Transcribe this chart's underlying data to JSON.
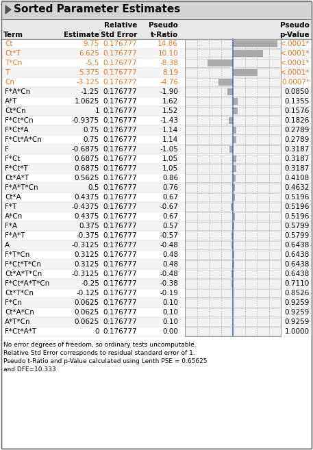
{
  "title": "Sorted Parameter Estimates",
  "headers": [
    "Term",
    "Estimate",
    "Relative\nStd Error",
    "Pseudo\nt-Ratio",
    "Pseudo\np-Value"
  ],
  "rows": [
    {
      "term": "Ct",
      "estimate": 9.75,
      "std_error": 0.176777,
      "t_ratio": 14.86,
      "p_value": "<.0001*",
      "p_highlight": true
    },
    {
      "term": "Ct*T",
      "estimate": 6.625,
      "std_error": 0.176777,
      "t_ratio": 10.1,
      "p_value": "<.0001*",
      "p_highlight": true
    },
    {
      "term": "T*Cn",
      "estimate": -5.5,
      "std_error": 0.176777,
      "t_ratio": -8.38,
      "p_value": "<.0001*",
      "p_highlight": true
    },
    {
      "term": "T",
      "estimate": 5.375,
      "std_error": 0.176777,
      "t_ratio": 8.19,
      "p_value": "<.0001*",
      "p_highlight": true
    },
    {
      "term": "Cn",
      "estimate": -3.125,
      "std_error": 0.176777,
      "t_ratio": -4.76,
      "p_value": "0.0007*",
      "p_highlight": true
    },
    {
      "term": "F*A*Cn",
      "estimate": -1.25,
      "std_error": 0.176777,
      "t_ratio": -1.9,
      "p_value": "0.0850",
      "p_highlight": false
    },
    {
      "term": "A*T",
      "estimate": 1.0625,
      "std_error": 0.176777,
      "t_ratio": 1.62,
      "p_value": "0.1355",
      "p_highlight": false
    },
    {
      "term": "Ct*Cn",
      "estimate": 1,
      "std_error": 0.176777,
      "t_ratio": 1.52,
      "p_value": "0.1576",
      "p_highlight": false
    },
    {
      "term": "F*Ct*Cn",
      "estimate": -0.9375,
      "std_error": 0.176777,
      "t_ratio": -1.43,
      "p_value": "0.1826",
      "p_highlight": false
    },
    {
      "term": "F*Ct*A",
      "estimate": 0.75,
      "std_error": 0.176777,
      "t_ratio": 1.14,
      "p_value": "0.2789",
      "p_highlight": false
    },
    {
      "term": "F*Ct*A*Cn",
      "estimate": 0.75,
      "std_error": 0.176777,
      "t_ratio": 1.14,
      "p_value": "0.2789",
      "p_highlight": false
    },
    {
      "term": "F",
      "estimate": -0.6875,
      "std_error": 0.176777,
      "t_ratio": -1.05,
      "p_value": "0.3187",
      "p_highlight": false
    },
    {
      "term": "F*Ct",
      "estimate": 0.6875,
      "std_error": 0.176777,
      "t_ratio": 1.05,
      "p_value": "0.3187",
      "p_highlight": false
    },
    {
      "term": "F*Ct*T",
      "estimate": 0.6875,
      "std_error": 0.176777,
      "t_ratio": 1.05,
      "p_value": "0.3187",
      "p_highlight": false
    },
    {
      "term": "Ct*A*T",
      "estimate": 0.5625,
      "std_error": 0.176777,
      "t_ratio": 0.86,
      "p_value": "0.4108",
      "p_highlight": false
    },
    {
      "term": "F*A*T*Cn",
      "estimate": 0.5,
      "std_error": 0.176777,
      "t_ratio": 0.76,
      "p_value": "0.4632",
      "p_highlight": false
    },
    {
      "term": "Ct*A",
      "estimate": 0.4375,
      "std_error": 0.176777,
      "t_ratio": 0.67,
      "p_value": "0.5196",
      "p_highlight": false
    },
    {
      "term": "F*T",
      "estimate": -0.4375,
      "std_error": 0.176777,
      "t_ratio": -0.67,
      "p_value": "0.5196",
      "p_highlight": false
    },
    {
      "term": "A*Cn",
      "estimate": 0.4375,
      "std_error": 0.176777,
      "t_ratio": 0.67,
      "p_value": "0.5196",
      "p_highlight": false
    },
    {
      "term": "F*A",
      "estimate": 0.375,
      "std_error": 0.176777,
      "t_ratio": 0.57,
      "p_value": "0.5799",
      "p_highlight": false
    },
    {
      "term": "F*A*T",
      "estimate": -0.375,
      "std_error": 0.176777,
      "t_ratio": -0.57,
      "p_value": "0.5799",
      "p_highlight": false
    },
    {
      "term": "A",
      "estimate": -0.3125,
      "std_error": 0.176777,
      "t_ratio": -0.48,
      "p_value": "0.6438",
      "p_highlight": false
    },
    {
      "term": "F*T*Cn",
      "estimate": 0.3125,
      "std_error": 0.176777,
      "t_ratio": 0.48,
      "p_value": "0.6438",
      "p_highlight": false
    },
    {
      "term": "F*Ct*T*Cn",
      "estimate": 0.3125,
      "std_error": 0.176777,
      "t_ratio": 0.48,
      "p_value": "0.6438",
      "p_highlight": false
    },
    {
      "term": "Ct*A*T*Cn",
      "estimate": -0.3125,
      "std_error": 0.176777,
      "t_ratio": -0.48,
      "p_value": "0.6438",
      "p_highlight": false
    },
    {
      "term": "F*Ct*A*T*Cn",
      "estimate": -0.25,
      "std_error": 0.176777,
      "t_ratio": -0.38,
      "p_value": "0.7110",
      "p_highlight": false
    },
    {
      "term": "Ct*T*Cn",
      "estimate": -0.125,
      "std_error": 0.176777,
      "t_ratio": -0.19,
      "p_value": "0.8526",
      "p_highlight": false
    },
    {
      "term": "F*Cn",
      "estimate": 0.0625,
      "std_error": 0.176777,
      "t_ratio": 0.1,
      "p_value": "0.9259",
      "p_highlight": false
    },
    {
      "term": "Ct*A*Cn",
      "estimate": 0.0625,
      "std_error": 0.176777,
      "t_ratio": 0.1,
      "p_value": "0.9259",
      "p_highlight": false
    },
    {
      "term": "A*T*Cn",
      "estimate": 0.0625,
      "std_error": 0.176777,
      "t_ratio": 0.1,
      "p_value": "0.9259",
      "p_highlight": false
    },
    {
      "term": "F*Ct*A*T",
      "estimate": 0,
      "std_error": 0.176777,
      "t_ratio": 0.0,
      "p_value": "1.0000",
      "p_highlight": false
    }
  ],
  "footnotes": [
    "No error degrees of freedom, so ordinary tests uncomputable.",
    "Relative Std Error corresponds to residual standard error of 1.",
    "Pseudo t-Ratio and p-Value calculated using Lenth PSE = 0.65625",
    "and DFE=10.333"
  ],
  "bar_max": 16,
  "bar_color": "#aaaaaa",
  "bar_bg": "#f0f0f0",
  "highlight_color": "#e87722",
  "zero_line_color": "#4472c4",
  "grid_color": "#aaaaaa",
  "header_bg": "#e8e8e8",
  "title_bg": "#d4d4d4",
  "row_alt_bg": "#f5f5f5",
  "row_bg": "#ffffff"
}
